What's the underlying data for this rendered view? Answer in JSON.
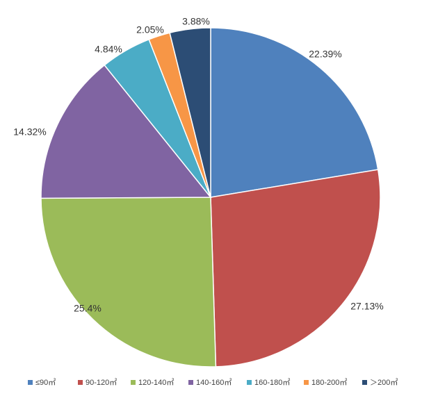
{
  "chart_data": {
    "type": "pie",
    "title": "",
    "start_angle_deg": 0,
    "direction": "clockwise",
    "legend_position": "bottom",
    "slices": [
      {
        "label": "≤90㎡",
        "value": 22.39,
        "display": "22.39%",
        "color": "#4F81BD"
      },
      {
        "label": "90-120㎡",
        "value": 27.13,
        "display": "27.13%",
        "color": "#C0504D"
      },
      {
        "label": "120-140㎡",
        "value": 25.4,
        "display": "25.4%",
        "color": "#9BBB59"
      },
      {
        "label": "140-160㎡",
        "value": 14.32,
        "display": "14.32%",
        "color": "#8064A2"
      },
      {
        "label": "160-180㎡",
        "value": 4.84,
        "display": "4.84%",
        "color": "#4BACC6"
      },
      {
        "label": "180-200㎡",
        "value": 2.05,
        "display": "2.05%",
        "color": "#F79646"
      },
      {
        "label": "＞200㎡",
        "value": 3.88,
        "display": "3.88%",
        "color": "#2C4D75"
      }
    ]
  }
}
